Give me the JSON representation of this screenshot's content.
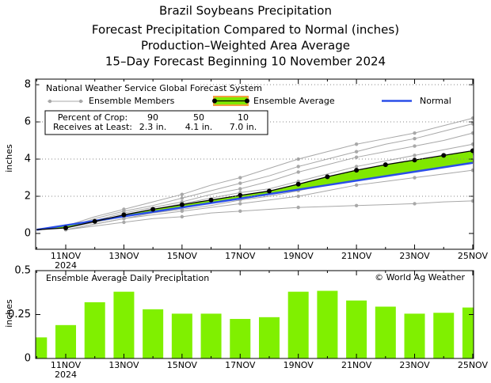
{
  "chart_data": [
    {
      "type": "line",
      "title": "Brazil Soybeans Precipitation",
      "subtitle": [
        "Forecast Precipitation Compared to Normal (inches)",
        "Production–Weighted Area Average",
        "15–Day Forecast Beginning 10 November 2024"
      ],
      "y_label": "inches",
      "categories": [
        null,
        "11NOV",
        null,
        "13NOV",
        null,
        "15NOV",
        null,
        "17NOV",
        null,
        "19NOV",
        null,
        "21NOV",
        null,
        "23NOV",
        null,
        "25NOV"
      ],
      "year_label": "2024",
      "ylim": [
        -0.85,
        8.3
      ],
      "yticks": [
        0,
        2,
        4,
        6,
        8
      ],
      "grid": true,
      "legend_title": "National Weather Service Global Forecast System",
      "ensemble_members": {
        "name": "Ensemble Members",
        "color": "#a8a8a8",
        "series": [
          [
            null,
            0.4,
            0.9,
            1.3,
            1.7,
            2.1,
            2.6,
            3.0,
            3.5,
            4.0,
            4.4,
            4.8,
            5.1,
            5.4,
            5.8,
            6.2
          ],
          [
            null,
            0.3,
            0.8,
            1.2,
            1.5,
            1.9,
            2.3,
            2.7,
            3.1,
            3.6,
            4.0,
            4.4,
            4.8,
            5.1,
            5.5,
            5.9
          ],
          [
            null,
            0.3,
            0.7,
            1.1,
            1.4,
            1.7,
            2.1,
            2.4,
            2.8,
            3.3,
            3.7,
            4.1,
            4.4,
            4.7,
            5.0,
            5.4
          ],
          [
            null,
            0.3,
            0.6,
            1.0,
            1.3,
            1.6,
            1.9,
            2.2,
            2.4,
            2.8,
            3.2,
            3.6,
            3.9,
            4.2,
            4.5,
            4.8
          ],
          [
            null,
            0.3,
            0.6,
            0.9,
            1.2,
            1.4,
            1.7,
            2.0,
            2.2,
            2.5,
            2.9,
            3.2,
            3.5,
            3.8,
            4.1,
            4.3
          ],
          [
            null,
            0.2,
            0.5,
            0.8,
            1.1,
            1.3,
            1.5,
            1.8,
            2.0,
            2.3,
            2.6,
            2.9,
            3.2,
            3.5,
            3.7,
            3.9
          ],
          [
            null,
            0.2,
            0.5,
            0.8,
            1.0,
            1.2,
            1.4,
            1.6,
            1.8,
            2.0,
            2.3,
            2.6,
            2.8,
            3.0,
            3.2,
            3.4
          ],
          [
            null,
            0.2,
            0.4,
            0.6,
            0.8,
            0.9,
            1.1,
            1.2,
            1.3,
            1.4,
            1.45,
            1.5,
            1.55,
            1.6,
            1.7,
            1.75
          ]
        ]
      },
      "series": [
        {
          "name": "Ensemble Average",
          "color": "#000000",
          "fill": "#80e800",
          "edge": "#f4a040",
          "values": [
            0.2,
            0.3,
            0.65,
            1.0,
            1.3,
            1.55,
            1.8,
            2.05,
            2.28,
            2.65,
            3.05,
            3.4,
            3.7,
            3.95,
            4.2,
            4.45
          ]
        },
        {
          "name": "Normal",
          "color": "#2a4ee8",
          "values": [
            0.2,
            0.44,
            0.68,
            0.92,
            1.16,
            1.4,
            1.64,
            1.88,
            2.12,
            2.36,
            2.6,
            2.84,
            3.08,
            3.32,
            3.56,
            3.8
          ]
        }
      ],
      "crop_table": {
        "rows": [
          [
            "Percent of Crop:",
            "90",
            "50",
            "10"
          ],
          [
            "Receives at Least:",
            "2.3 in.",
            "4.1 in.",
            "7.0 in."
          ]
        ]
      }
    },
    {
      "type": "bar",
      "title": "Ensemble Average Daily Precipitation",
      "annotation": "© World Ag Weather",
      "y_label": "inches",
      "categories": [
        null,
        "11NOV",
        null,
        "13NOV",
        null,
        "15NOV",
        null,
        "17NOV",
        null,
        "19NOV",
        null,
        "21NOV",
        null,
        "23NOV",
        null,
        "25NOV"
      ],
      "year_label": "2024",
      "values": [
        0.12,
        0.19,
        0.32,
        0.38,
        0.28,
        0.255,
        0.255,
        0.225,
        0.235,
        0.38,
        0.385,
        0.33,
        0.295,
        0.255,
        0.26,
        0.29
      ],
      "color": "#80f000",
      "ylim": [
        0,
        0.5
      ],
      "yticks": [
        0,
        0.25,
        0.5
      ]
    }
  ]
}
